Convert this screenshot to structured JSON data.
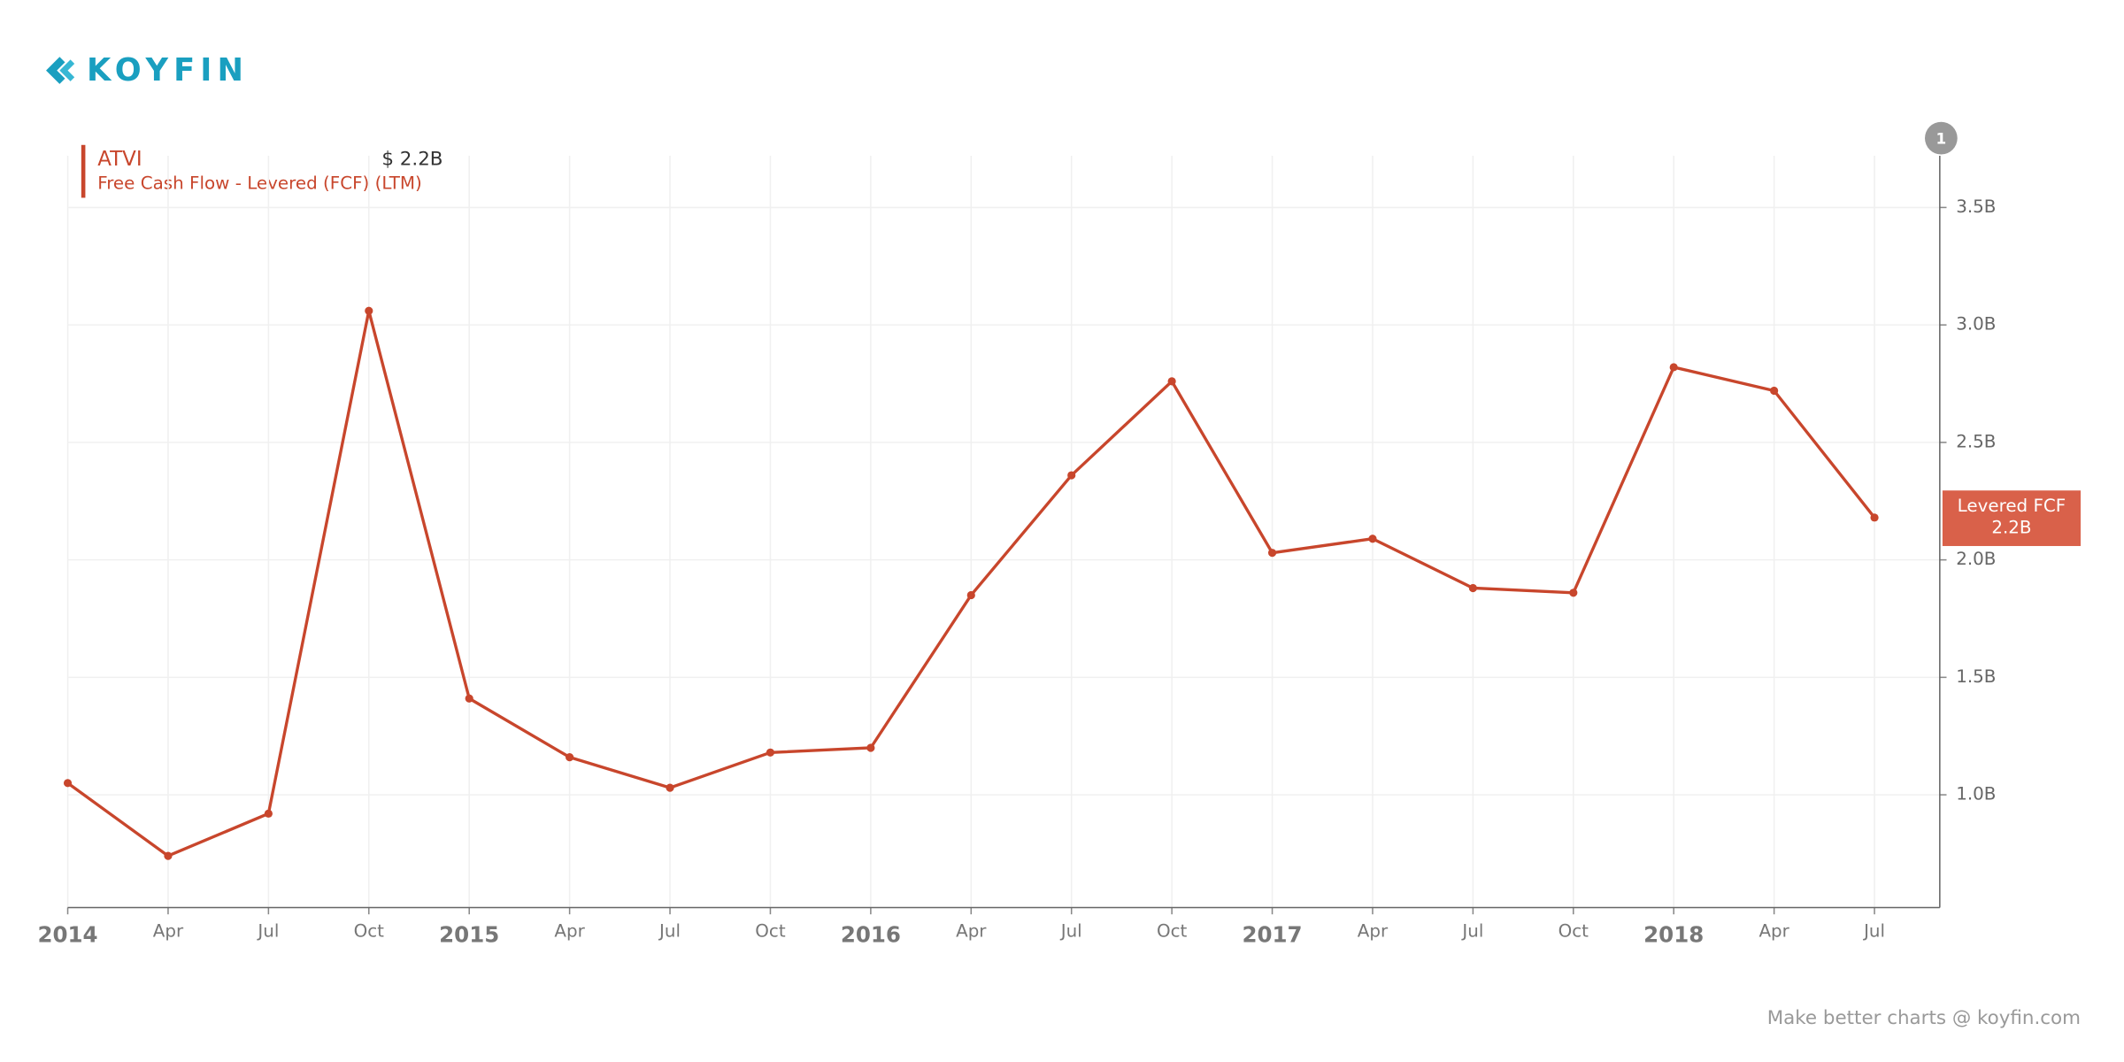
{
  "brand": "KOYFIN",
  "footer": "Make better charts @ koyfin.com",
  "chart_data": {
    "type": "line",
    "subtitle": "Free Cash Flow - Levered (FCF) (LTM)",
    "legend_value": "$ 2.2B",
    "badge": "1",
    "last_tag": {
      "name": "Levered FCF",
      "value": 2.18,
      "label": "2.2B"
    },
    "categories": [
      "2014",
      "Apr",
      "Jul",
      "Oct",
      "2015",
      "Apr",
      "Jul",
      "Oct",
      "2016",
      "Apr",
      "Jul",
      "Oct",
      "2017",
      "Apr",
      "Jul",
      "Oct",
      "2018",
      "Apr",
      "Jul"
    ],
    "series": [
      {
        "name": "ATVI",
        "color": "#c8462c",
        "values": [
          1.05,
          0.74,
          0.92,
          3.06,
          1.41,
          1.16,
          1.03,
          1.18,
          1.2,
          1.85,
          2.36,
          2.76,
          2.03,
          2.09,
          1.88,
          1.86,
          2.82,
          2.72,
          2.18
        ]
      }
    ],
    "ylim": [
      0.52,
      3.72
    ],
    "yticks": [
      {
        "value": 1.0,
        "label": "1.0B"
      },
      {
        "value": 1.5,
        "label": "1.5B"
      },
      {
        "value": 2.0,
        "label": "2.0B"
      },
      {
        "value": 2.5,
        "label": "2.5B"
      },
      {
        "value": 3.0,
        "label": "3.0B"
      },
      {
        "value": 3.5,
        "label": "3.5B"
      }
    ],
    "grid": true,
    "y_axis_side": "right",
    "tag_color": "#d9614a"
  }
}
